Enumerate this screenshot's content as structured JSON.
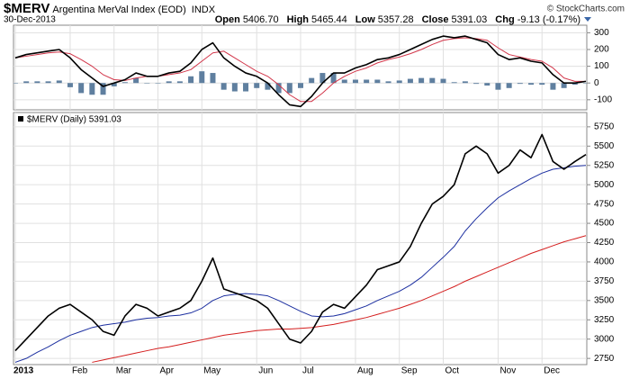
{
  "header": {
    "symbol": "$MERV",
    "name": "Argentina MerVal Index (EOD)",
    "exchange": "INDX",
    "copyright": "© StockCharts.com",
    "date": "30-Dec-2013",
    "quote": [
      {
        "label": "Open",
        "value": "5406.70"
      },
      {
        "label": "High",
        "value": "5465.44"
      },
      {
        "label": "Low",
        "value": "5357.28"
      },
      {
        "label": "Close",
        "value": "5391.03"
      },
      {
        "label": "Chg",
        "value": "-9.13 (-0.17%)"
      }
    ]
  },
  "chart_data": [
    {
      "type": "line",
      "ylim": [
        -160,
        345
      ],
      "yticks": [
        -100,
        0,
        100,
        200,
        300
      ],
      "grid": true,
      "series": [
        {
          "type": "bar",
          "color": "#5f7f9f",
          "values": [
            0,
            10,
            10,
            10,
            15,
            -25,
            -60,
            -70,
            -70,
            -20,
            5,
            30,
            0,
            0,
            10,
            10,
            40,
            70,
            60,
            -40,
            -50,
            -50,
            -30,
            -40,
            -60,
            -60,
            -30,
            30,
            60,
            60,
            20,
            20,
            20,
            20,
            10,
            15,
            25,
            30,
            30,
            25,
            5,
            10,
            -5,
            -15,
            -40,
            -30,
            -5,
            -10,
            -10,
            -40,
            -30,
            -10,
            0
          ]
        },
        {
          "color": "#d2364a",
          "values": [
            150,
            160,
            170,
            180,
            185,
            175,
            140,
            100,
            50,
            20,
            15,
            30,
            40,
            40,
            50,
            60,
            80,
            130,
            180,
            190,
            150,
            110,
            70,
            40,
            -10,
            -70,
            -110,
            -110,
            -60,
            0,
            40,
            70,
            90,
            120,
            140,
            155,
            175,
            200,
            230,
            255,
            265,
            270,
            265,
            255,
            210,
            170,
            155,
            140,
            130,
            90,
            30,
            10,
            10
          ]
        },
        {
          "color": "#000000",
          "values": [
            150,
            170,
            180,
            190,
            200,
            150,
            80,
            30,
            -20,
            0,
            20,
            60,
            40,
            40,
            60,
            70,
            120,
            200,
            240,
            150,
            100,
            60,
            40,
            0,
            -70,
            -130,
            -140,
            -80,
            0,
            60,
            60,
            90,
            110,
            140,
            150,
            170,
            200,
            230,
            260,
            280,
            270,
            280,
            260,
            240,
            170,
            140,
            150,
            130,
            120,
            50,
            0,
            0,
            10
          ]
        }
      ]
    },
    {
      "type": "line",
      "title": "$MERV (Daily) 5391.03",
      "categories": [
        "2013",
        null,
        null,
        null,
        null,
        "Feb",
        null,
        null,
        null,
        "Mar",
        null,
        null,
        null,
        "Apr",
        null,
        null,
        null,
        "May",
        null,
        null,
        null,
        null,
        "Jun",
        null,
        null,
        null,
        "Jul",
        null,
        null,
        null,
        null,
        "Aug",
        null,
        null,
        null,
        "Sep",
        null,
        null,
        null,
        "Oct",
        null,
        null,
        null,
        null,
        "Nov",
        null,
        null,
        null,
        "Dec",
        null,
        null,
        null,
        null
      ],
      "ylim": [
        2670,
        5935
      ],
      "yticks": [
        2750,
        3000,
        3250,
        3500,
        3750,
        4000,
        4250,
        4500,
        4750,
        5000,
        5250,
        5500,
        5750
      ],
      "grid": true,
      "series": [
        {
          "color": "#d41e1e",
          "values": [
            null,
            null,
            null,
            null,
            null,
            null,
            null,
            2700,
            2730,
            2760,
            2790,
            2820,
            2850,
            2880,
            2900,
            2930,
            2960,
            2990,
            3020,
            3050,
            3070,
            3090,
            3110,
            3120,
            3130,
            3130,
            3140,
            3150,
            3170,
            3190,
            3220,
            3250,
            3280,
            3320,
            3360,
            3400,
            3450,
            3500,
            3560,
            3620,
            3680,
            3750,
            3810,
            3870,
            3930,
            3990,
            4050,
            4110,
            4160,
            4210,
            4260,
            4300,
            4340
          ]
        },
        {
          "color": "#1c2fa0",
          "values": [
            2700,
            2750,
            2830,
            2900,
            2980,
            3050,
            3100,
            3150,
            3180,
            3200,
            3220,
            3250,
            3270,
            3280,
            3300,
            3310,
            3340,
            3400,
            3500,
            3560,
            3580,
            3590,
            3580,
            3560,
            3500,
            3430,
            3360,
            3300,
            3290,
            3300,
            3330,
            3380,
            3430,
            3500,
            3560,
            3620,
            3700,
            3800,
            3930,
            4060,
            4200,
            4400,
            4560,
            4700,
            4830,
            4920,
            5000,
            5080,
            5150,
            5200,
            5220,
            5240,
            5250
          ]
        },
        {
          "color": "#000000",
          "values": [
            2850,
            3000,
            3150,
            3300,
            3400,
            3450,
            3350,
            3250,
            3100,
            3050,
            3300,
            3450,
            3400,
            3300,
            3350,
            3400,
            3500,
            3750,
            4050,
            3650,
            3600,
            3550,
            3500,
            3400,
            3200,
            3000,
            2950,
            3100,
            3350,
            3450,
            3400,
            3550,
            3700,
            3900,
            3950,
            4000,
            4200,
            4500,
            4750,
            4850,
            5000,
            5400,
            5500,
            5400,
            5150,
            5250,
            5450,
            5350,
            5650,
            5300,
            5200,
            5300,
            5391.03
          ]
        }
      ]
    }
  ]
}
